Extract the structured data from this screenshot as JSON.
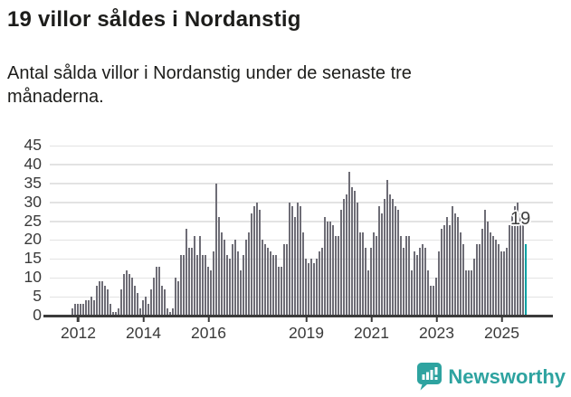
{
  "header": {
    "title": "19 villor såldes i Nordanstig",
    "subtitle": "Antal sålda villor i Nordanstig under de senaste tre månaderna."
  },
  "chart_data": {
    "type": "bar",
    "title": "19 villor såldes i Nordanstig",
    "subtitle": "Antal sålda villor i Nordanstig under de senaste tre månaderna.",
    "ylabel": "",
    "xlabel": "",
    "ylim": [
      0,
      45
    ],
    "y_ticks": [
      0,
      5,
      10,
      15,
      20,
      25,
      30,
      35,
      40,
      45
    ],
    "grid": true,
    "values": [
      2,
      3,
      3,
      3,
      3,
      4,
      4,
      5,
      4,
      8,
      9,
      9,
      8,
      7,
      3,
      1,
      1,
      2,
      7,
      11,
      12,
      11,
      10,
      8,
      6,
      2,
      4,
      5,
      3,
      7,
      10,
      13,
      13,
      8,
      7,
      2,
      1,
      2,
      10,
      9,
      16,
      16,
      23,
      18,
      18,
      21,
      16,
      21,
      16,
      16,
      13,
      12,
      17,
      35,
      26,
      22,
      20,
      16,
      15,
      19,
      20,
      17,
      12,
      16,
      20,
      22,
      27,
      29,
      30,
      28,
      20,
      19,
      18,
      17,
      16,
      16,
      13,
      13,
      19,
      19,
      30,
      29,
      26,
      30,
      29,
      22,
      15,
      14,
      15,
      14,
      15,
      17,
      18,
      26,
      25,
      25,
      24,
      21,
      21,
      28,
      31,
      32,
      38,
      34,
      33,
      30,
      22,
      22,
      18,
      12,
      18,
      22,
      21,
      29,
      27,
      31,
      36,
      32,
      31,
      29,
      28,
      21,
      18,
      21,
      21,
      12,
      17,
      16,
      18,
      19,
      18,
      12,
      8,
      8,
      10,
      17,
      23,
      24,
      26,
      24,
      29,
      27,
      26,
      22,
      19,
      12,
      12,
      12,
      15,
      19,
      19,
      23,
      28,
      25,
      22,
      21,
      20,
      19,
      17,
      17,
      18,
      24,
      27,
      29,
      30,
      27,
      25,
      19
    ],
    "x_ticks": [
      {
        "label": "2012",
        "index": 2
      },
      {
        "label": "2014",
        "index": 26
      },
      {
        "label": "2016",
        "index": 50
      },
      {
        "label": "2019",
        "index": 86
      },
      {
        "label": "2021",
        "index": 110
      },
      {
        "label": "2023",
        "index": 134
      },
      {
        "label": "2025",
        "index": 158
      }
    ],
    "highlight_last_bar": true,
    "last_value": 19,
    "annotation": "19",
    "bar_color": "#6e6d76",
    "highlight_color": "#00a1a3",
    "legend": "none"
  },
  "footer": {
    "brand": "Newsworthy",
    "brand_color": "#2ea3a0"
  }
}
